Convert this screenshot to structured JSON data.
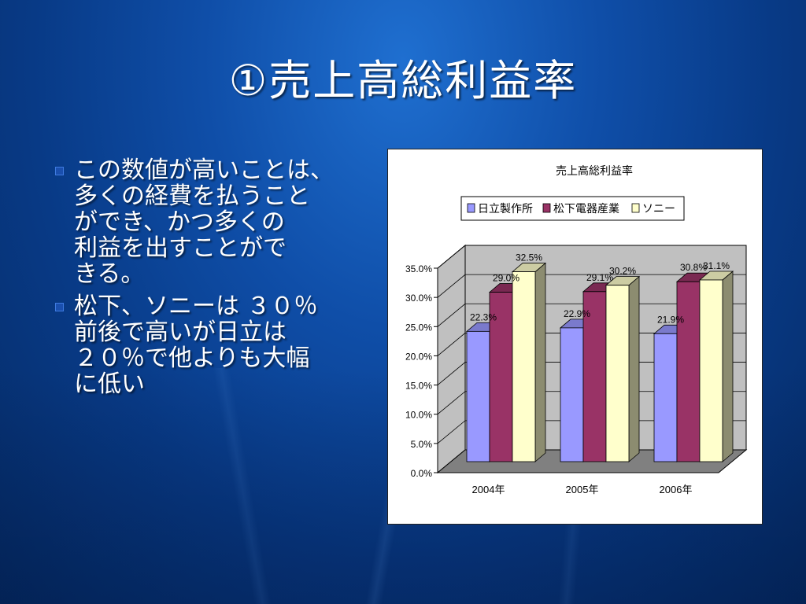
{
  "slide": {
    "title": "①売上高総利益率",
    "bullets": [
      "この数値が高いことは、\n多くの経費を払うこと\nができ、かつ多くの\n利益を出すことがで\nきる。",
      "松下、ソニーは ３０％\n前後で高いが日立は\n２０％で他よりも大幅\nに低い"
    ]
  },
  "chart_data": {
    "type": "bar",
    "title": "売上高総利益率",
    "categories": [
      "2004年",
      "2005年",
      "2006年"
    ],
    "series": [
      {
        "name": "日立製作所",
        "values": [
          22.3,
          22.9,
          21.9
        ],
        "labels": [
          "22.3%",
          "22.9%",
          "21.9%"
        ],
        "color": "#9999ff"
      },
      {
        "name": "松下電器産業",
        "values": [
          29.0,
          29.1,
          30.8
        ],
        "labels": [
          "29.0%",
          "29.1%",
          "30.8%"
        ],
        "color": "#993366"
      },
      {
        "name": "ソニー",
        "values": [
          32.5,
          30.2,
          31.1
        ],
        "labels": [
          "32.5%",
          "30.2%",
          "31.1%"
        ],
        "color": "#ffffcc"
      }
    ],
    "y_ticks": [
      "0.0%",
      "5.0%",
      "10.0%",
      "15.0%",
      "20.0%",
      "25.0%",
      "30.0%",
      "35.0%"
    ],
    "ylim": [
      0,
      35
    ],
    "legend_position": "top",
    "grid": true,
    "wall_color": "#c0c0c0",
    "floor_color": "#808080"
  }
}
